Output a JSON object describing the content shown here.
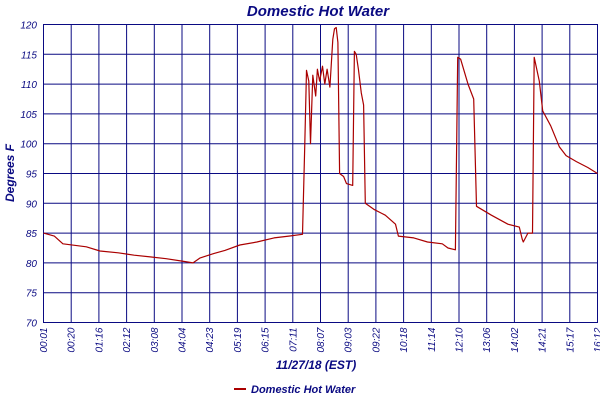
{
  "colors": {
    "grid": "#0a0a82",
    "text": "#0a0a82",
    "series": "#aa0000",
    "background": "#ffffff"
  },
  "chart_data": {
    "type": "line",
    "title": "Domestic Hot Water",
    "xlabel": "11/27/18 (EST)",
    "ylabel": "Degrees F",
    "ylim": [
      70,
      120
    ],
    "yticks": [
      "70",
      "75",
      "80",
      "85",
      "90",
      "95",
      "100",
      "105",
      "110",
      "115",
      "120"
    ],
    "xlim": [
      "00:01",
      "16:12"
    ],
    "xticks": [
      "00:01",
      "00:20",
      "01:16",
      "02:12",
      "03:08",
      "04:04",
      "04:23",
      "05:19",
      "06:15",
      "07:11",
      "08:07",
      "09:03",
      "09:22",
      "10:18",
      "11:14",
      "12:10",
      "13:06",
      "14:02",
      "14:21",
      "15:17",
      "16:12"
    ],
    "grid": true,
    "legend_position": "bottom",
    "series": [
      {
        "name": "Domestic Hot Water",
        "points": [
          [
            "00:01",
            85.0
          ],
          [
            "00:20",
            84.5
          ],
          [
            "00:35",
            83.2
          ],
          [
            "01:16",
            82.7
          ],
          [
            "01:40",
            82.0
          ],
          [
            "02:12",
            81.7
          ],
          [
            "02:40",
            81.3
          ],
          [
            "03:08",
            81.0
          ],
          [
            "03:36",
            80.7
          ],
          [
            "04:04",
            80.3
          ],
          [
            "04:23",
            80.0
          ],
          [
            "04:35",
            80.8
          ],
          [
            "05:00",
            81.6
          ],
          [
            "05:19",
            82.1
          ],
          [
            "05:45",
            83.0
          ],
          [
            "06:15",
            83.5
          ],
          [
            "06:45",
            84.2
          ],
          [
            "07:11",
            84.5
          ],
          [
            "07:35",
            84.8
          ],
          [
            "07:39",
            100.0
          ],
          [
            "07:42",
            112.3
          ],
          [
            "07:46",
            110.5
          ],
          [
            "07:49",
            100.0
          ],
          [
            "07:53",
            111.5
          ],
          [
            "07:58",
            108.0
          ],
          [
            "08:01",
            112.5
          ],
          [
            "08:05",
            110.5
          ],
          [
            "08:10",
            113.0
          ],
          [
            "08:14",
            110.0
          ],
          [
            "08:18",
            112.5
          ],
          [
            "08:23",
            109.5
          ],
          [
            "08:28",
            117.5
          ],
          [
            "08:31",
            119.3
          ],
          [
            "08:34",
            119.5
          ],
          [
            "08:37",
            117.0
          ],
          [
            "08:40",
            95.0
          ],
          [
            "08:47",
            94.5
          ],
          [
            "08:52",
            93.3
          ],
          [
            "09:03",
            93.0
          ],
          [
            "09:06",
            115.5
          ],
          [
            "09:09",
            115.0
          ],
          [
            "09:13",
            112.5
          ],
          [
            "09:18",
            108.5
          ],
          [
            "09:22",
            106.5
          ],
          [
            "09:25",
            90.0
          ],
          [
            "09:40",
            89.0
          ],
          [
            "10:00",
            88.0
          ],
          [
            "10:18",
            86.5
          ],
          [
            "10:23",
            84.5
          ],
          [
            "10:50",
            84.2
          ],
          [
            "11:14",
            83.5
          ],
          [
            "11:40",
            83.2
          ],
          [
            "11:50",
            82.5
          ],
          [
            "12:03",
            82.2
          ],
          [
            "12:07",
            114.5
          ],
          [
            "12:12",
            114.2
          ],
          [
            "12:25",
            110.0
          ],
          [
            "12:35",
            107.5
          ],
          [
            "12:40",
            89.5
          ],
          [
            "13:06",
            88.0
          ],
          [
            "13:35",
            86.5
          ],
          [
            "13:55",
            86.0
          ],
          [
            "14:00",
            84.0
          ],
          [
            "14:02",
            83.5
          ],
          [
            "14:10",
            85.0
          ],
          [
            "14:18",
            85.0
          ],
          [
            "14:21",
            114.5
          ],
          [
            "14:30",
            110.5
          ],
          [
            "14:36",
            105.5
          ],
          [
            "14:50",
            103.0
          ],
          [
            "15:05",
            99.5
          ],
          [
            "15:17",
            98.0
          ],
          [
            "15:35",
            97.0
          ],
          [
            "15:55",
            96.0
          ],
          [
            "16:12",
            95.0
          ]
        ]
      }
    ]
  }
}
